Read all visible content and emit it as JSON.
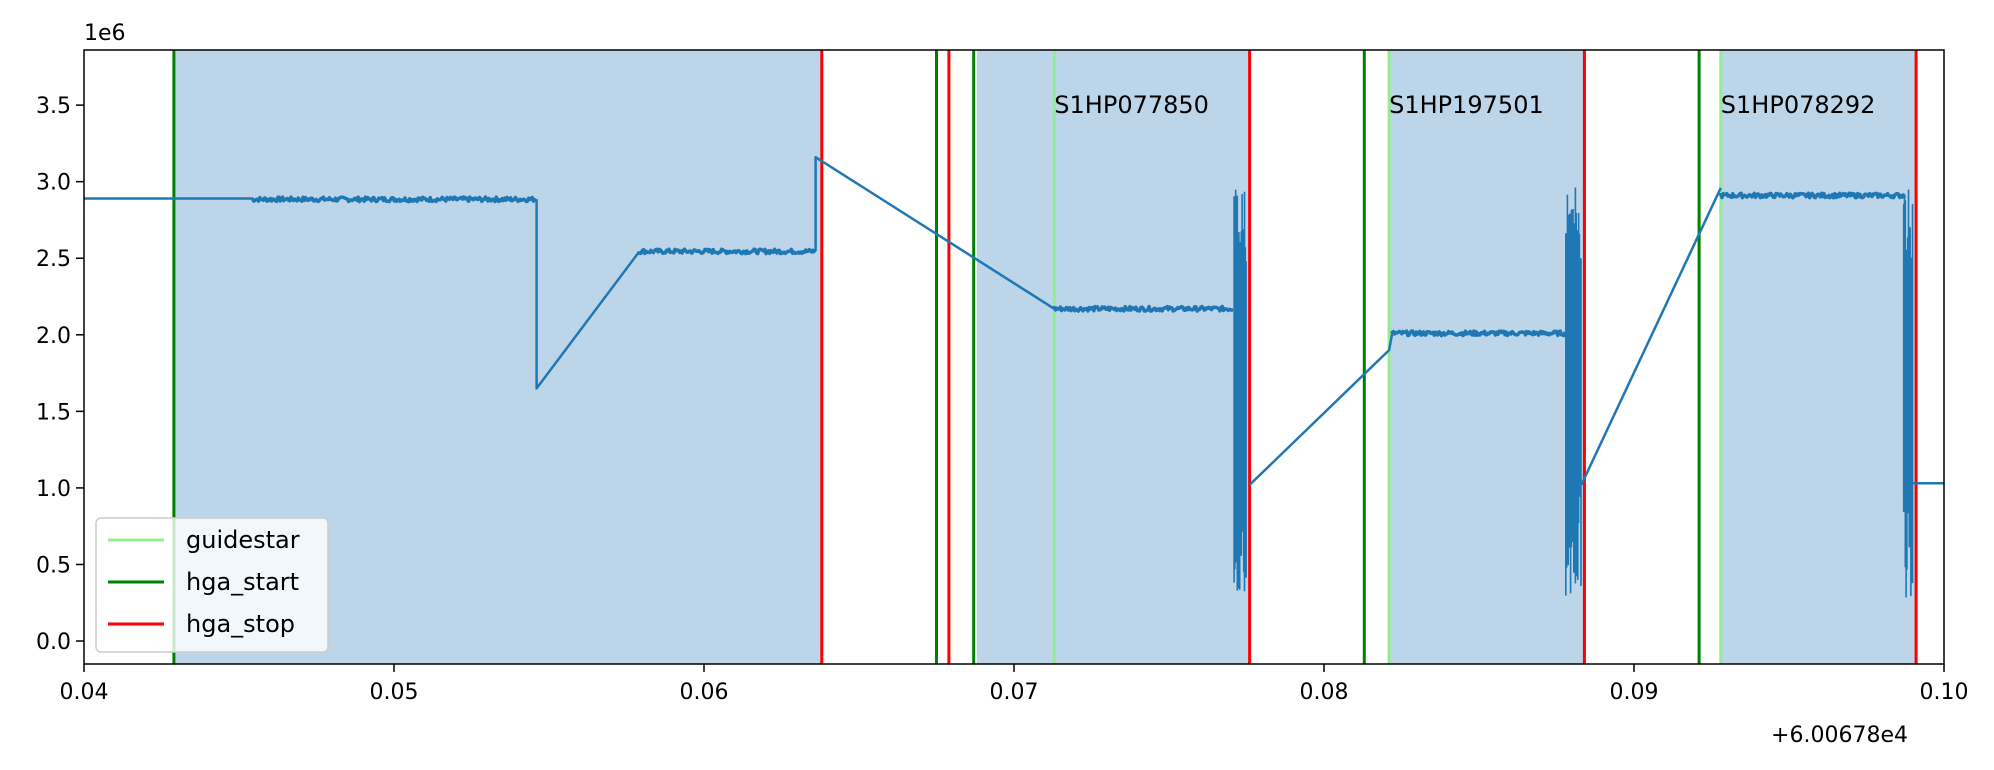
{
  "chart_data": {
    "type": "line",
    "title": "",
    "xlabel": "",
    "ylabel": "",
    "xlim": [
      0.04,
      0.1
    ],
    "ylim": [
      -150000,
      3860000
    ],
    "x_offset_label": "+6.00678e4",
    "y_scale_label": "1e6",
    "x_ticks": [
      {
        "value": 0.04,
        "label": "0.04"
      },
      {
        "value": 0.05,
        "label": "0.05"
      },
      {
        "value": 0.06,
        "label": "0.06"
      },
      {
        "value": 0.07,
        "label": "0.07"
      },
      {
        "value": 0.08,
        "label": "0.08"
      },
      {
        "value": 0.09,
        "label": "0.09"
      },
      {
        "value": 0.1,
        "label": "0.10"
      }
    ],
    "y_ticks": [
      {
        "value": 0,
        "label": "0.0"
      },
      {
        "value": 500000,
        "label": "0.5"
      },
      {
        "value": 1000000,
        "label": "1.0"
      },
      {
        "value": 1500000,
        "label": "1.5"
      },
      {
        "value": 2000000,
        "label": "2.0"
      },
      {
        "value": 2500000,
        "label": "2.5"
      },
      {
        "value": 3000000,
        "label": "3.0"
      },
      {
        "value": 3500000,
        "label": "3.5"
      }
    ],
    "shaded_regions": [
      {
        "x0": 0.0429,
        "x1": 0.0638,
        "color": "#bcd5e8"
      },
      {
        "x0": 0.0688,
        "x1": 0.0776,
        "color": "#bcd5e8"
      },
      {
        "x0": 0.0821,
        "x1": 0.0884,
        "color": "#bcd5e8"
      },
      {
        "x0": 0.0928,
        "x1": 0.0991,
        "color": "#bcd5e8"
      }
    ],
    "vlines": {
      "guidestar": {
        "color": "#90ee90",
        "x": [
          0.0713,
          0.0821,
          0.0928
        ]
      },
      "hga_start": {
        "color": "#008000",
        "x": [
          0.0429,
          0.0675,
          0.0687,
          0.0813,
          0.0921
        ]
      },
      "hga_stop": {
        "color": "#ff0000",
        "x": [
          0.0638,
          0.0679,
          0.0776,
          0.0884,
          0.0991
        ]
      }
    },
    "annotations": [
      {
        "text": "S1HP077850",
        "x": 0.0713,
        "y": 3500000
      },
      {
        "text": "S1HP197501",
        "x": 0.0821,
        "y": 3500000
      },
      {
        "text": "S1HP078292",
        "x": 0.0928,
        "y": 3500000
      }
    ],
    "legend": {
      "position": "lower-left",
      "entries": [
        {
          "label": "guidestar",
          "color": "#90ee90"
        },
        {
          "label": "hga_start",
          "color": "#008000"
        },
        {
          "label": "hga_stop",
          "color": "#ff0000"
        }
      ]
    },
    "series": [
      {
        "color": "#1f77b4",
        "segments": [
          {
            "kind": "line",
            "points": [
              [
                0.04,
                2890000
              ],
              [
                0.0454,
                2890000
              ]
            ]
          },
          {
            "kind": "noise",
            "x0": 0.0454,
            "x1": 0.0546,
            "y": 2885000,
            "amp": 15000
          },
          {
            "kind": "line",
            "points": [
              [
                0.0546,
                2885000
              ],
              [
                0.0546,
                1650000
              ],
              [
                0.0579,
                2540000
              ]
            ]
          },
          {
            "kind": "noise",
            "x0": 0.0579,
            "x1": 0.0636,
            "y": 2545000,
            "amp": 15000
          },
          {
            "kind": "line",
            "points": [
              [
                0.0636,
                2545000
              ],
              [
                0.0636,
                3160000
              ],
              [
                0.0713,
                2170000
              ]
            ]
          },
          {
            "kind": "noise",
            "x0": 0.0713,
            "x1": 0.0771,
            "y": 2170000,
            "amp": 15000
          },
          {
            "kind": "burst",
            "x0": 0.0771,
            "x1": 0.0775,
            "ymin": 280000,
            "ymax": 3020000
          },
          {
            "kind": "line",
            "points": [
              [
                0.0776,
                1020000
              ],
              [
                0.0821,
                1900000
              ],
              [
                0.0822,
                2010000
              ]
            ]
          },
          {
            "kind": "noise",
            "x0": 0.0822,
            "x1": 0.0878,
            "y": 2010000,
            "amp": 15000
          },
          {
            "kind": "burst",
            "x0": 0.0878,
            "x1": 0.0883,
            "ymin": 280000,
            "ymax": 2980000
          },
          {
            "kind": "line",
            "points": [
              [
                0.0883,
                1020000
              ],
              [
                0.0928,
                2960000
              ]
            ]
          },
          {
            "kind": "noise",
            "x0": 0.0928,
            "x1": 0.0988,
            "y": 2910000,
            "amp": 15000
          },
          {
            "kind": "burst",
            "x0": 0.0987,
            "x1": 0.099,
            "ymin": 280000,
            "ymax": 3020000
          },
          {
            "kind": "line",
            "points": [
              [
                0.099,
                1030000
              ],
              [
                0.1,
                1030000
              ]
            ]
          }
        ]
      }
    ]
  }
}
